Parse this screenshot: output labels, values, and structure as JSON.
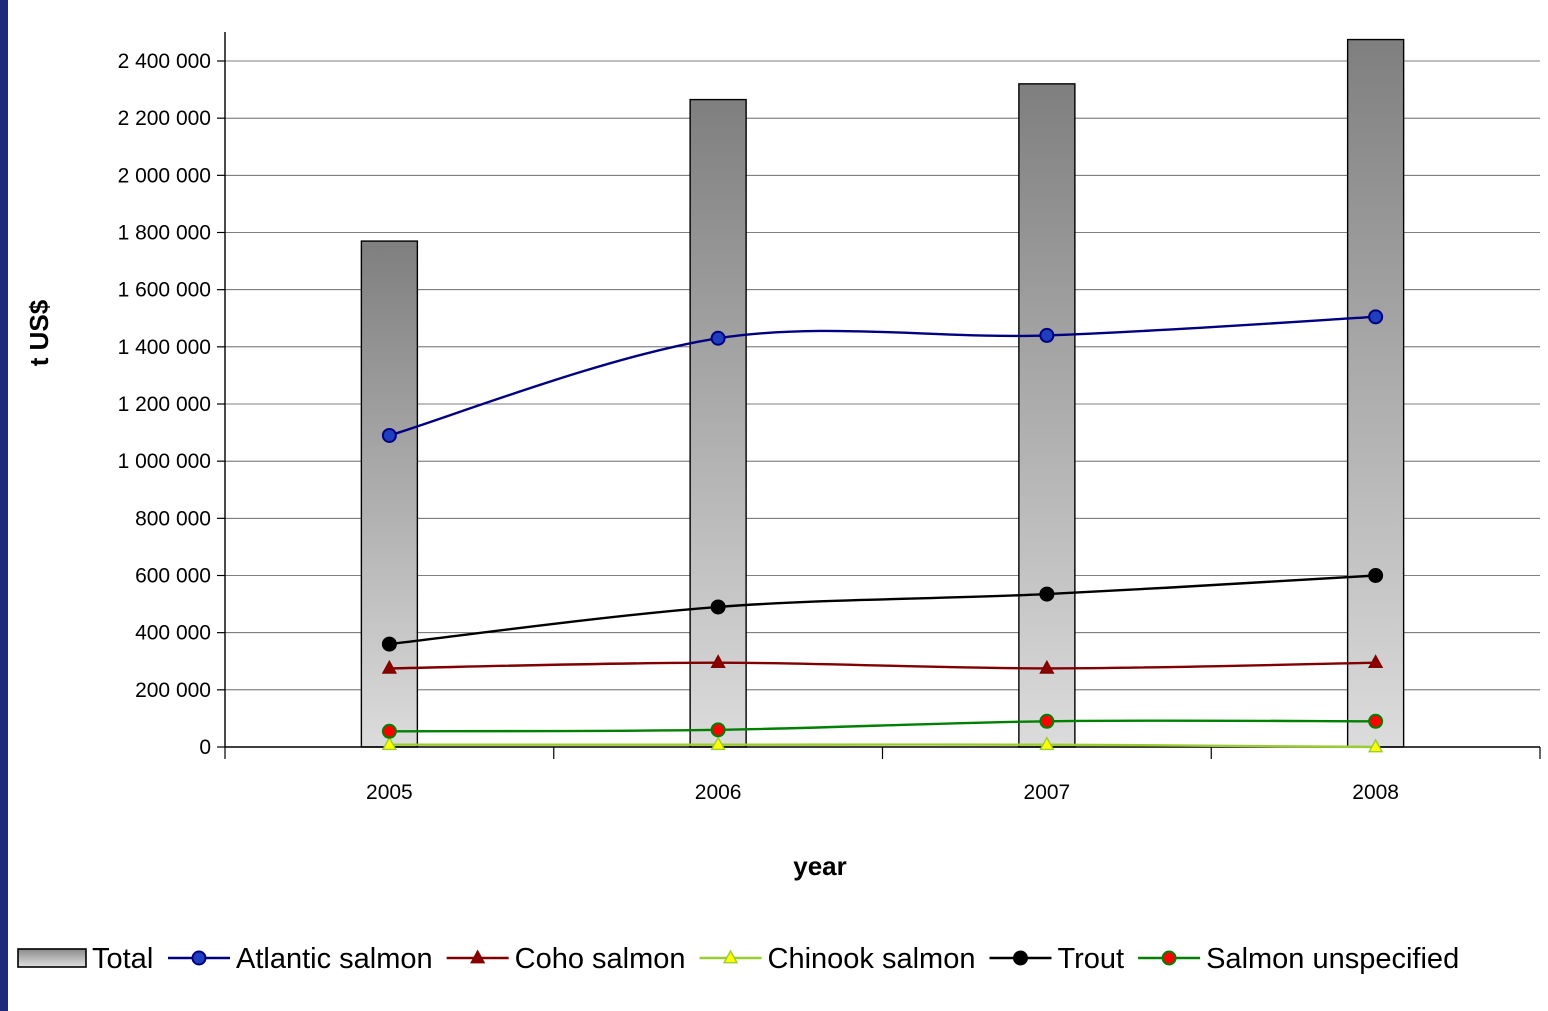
{
  "chart_data": {
    "type": "bar",
    "categories": [
      "2005",
      "2006",
      "2007",
      "2008"
    ],
    "xlabel": "year",
    "ylabel": "t US$",
    "ylim": [
      0,
      2500000
    ],
    "yticks": [
      0,
      200000,
      400000,
      600000,
      800000,
      1000000,
      1200000,
      1400000,
      1600000,
      1800000,
      2000000,
      2200000,
      2400000
    ],
    "ytick_labels": [
      "0",
      "200 000",
      "400 000",
      "600 000",
      "800 000",
      "1 000 000",
      "1 200 000",
      "1 400 000",
      "1 600 000",
      "1 800 000",
      "2 000 000",
      "2 200 000",
      "2 400 000"
    ],
    "grid": true,
    "legend_position": "bottom",
    "bar_series": {
      "name": "Total",
      "values": [
        1770000,
        2265000,
        2320000,
        2475000
      ],
      "color_top": "#7f7f7f",
      "color_bottom": "#dcdcdc"
    },
    "line_series": [
      {
        "name": "Atlantic salmon",
        "values": [
          1090000,
          1430000,
          1440000,
          1505000
        ],
        "color": "#000080",
        "marker": "circle",
        "marker_fill": "#1f3fbf"
      },
      {
        "name": "Coho salmon",
        "values": [
          275000,
          295000,
          275000,
          295000
        ],
        "color": "#800000",
        "marker": "triangle",
        "marker_fill": "#8b0000"
      },
      {
        "name": "Chinook salmon",
        "values": [
          8000,
          8000,
          8000,
          0
        ],
        "color": "#9acd32",
        "marker": "triangle",
        "marker_fill": "#ffff00"
      },
      {
        "name": "Trout",
        "values": [
          360000,
          490000,
          535000,
          600000
        ],
        "color": "#000000",
        "marker": "circle",
        "marker_fill": "#000000"
      },
      {
        "name": "Salmon unspecified",
        "values": [
          55000,
          60000,
          90000,
          90000
        ],
        "color": "#008000",
        "marker": "circle",
        "marker_fill": "#ff0000"
      }
    ]
  }
}
